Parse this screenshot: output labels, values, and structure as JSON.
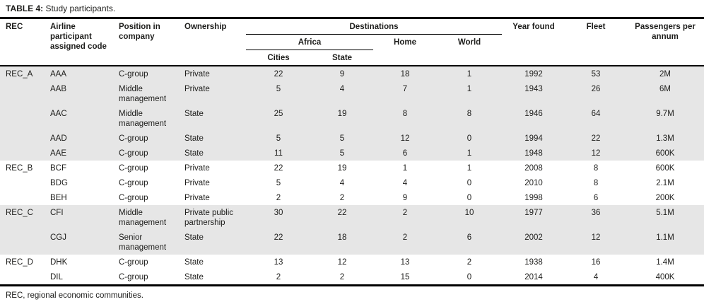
{
  "title": {
    "label": "TABLE 4:",
    "text": " Study participants."
  },
  "footnote": "REC, regional economic communities.",
  "colors": {
    "band_shaded": "#e6e6e6",
    "band_plain": "#ffffff",
    "rule": "#000000",
    "text": "#1d1d1b"
  },
  "table": {
    "headers": {
      "rec": "REC",
      "airline": "Airline participant assigned code",
      "position": "Position in company",
      "ownership": "Ownership",
      "destinations": "Destinations",
      "africa": "Africa",
      "cities": "Cities",
      "state": "State",
      "home": "Home",
      "world": "World",
      "year_found": "Year found",
      "fleet": "Fleet",
      "passengers": "Passengers per annum"
    },
    "groups": [
      {
        "rec": "REC_A",
        "shaded": true,
        "rows": [
          {
            "code": "AAA",
            "position": "C-group",
            "ownership": "Private",
            "cities": 22,
            "state": 9,
            "home": 18,
            "world": 1,
            "year": 1992,
            "fleet": 53,
            "passengers": "2M"
          },
          {
            "code": "AAB",
            "position": "Middle management",
            "ownership": "Private",
            "cities": 5,
            "state": 4,
            "home": 7,
            "world": 1,
            "year": 1943,
            "fleet": 26,
            "passengers": "6M"
          },
          {
            "code": "AAC",
            "position": "Middle management",
            "ownership": "State",
            "cities": 25,
            "state": 19,
            "home": 8,
            "world": 8,
            "year": 1946,
            "fleet": 64,
            "passengers": "9.7M"
          },
          {
            "code": "AAD",
            "position": "C-group",
            "ownership": "State",
            "cities": 5,
            "state": 5,
            "home": 12,
            "world": 0,
            "year": 1994,
            "fleet": 22,
            "passengers": "1.3M"
          },
          {
            "code": "AAE",
            "position": "C-group",
            "ownership": "State",
            "cities": 11,
            "state": 5,
            "home": 6,
            "world": 1,
            "year": 1948,
            "fleet": 12,
            "passengers": "600K"
          }
        ]
      },
      {
        "rec": "REC_B",
        "shaded": false,
        "rows": [
          {
            "code": "BCF",
            "position": "C-group",
            "ownership": "Private",
            "cities": 22,
            "state": 19,
            "home": 1,
            "world": 1,
            "year": 2008,
            "fleet": 8,
            "passengers": "600K"
          },
          {
            "code": "BDG",
            "position": "C-group",
            "ownership": "Private",
            "cities": 5,
            "state": 4,
            "home": 4,
            "world": 0,
            "year": 2010,
            "fleet": 8,
            "passengers": "2.1M"
          },
          {
            "code": "BEH",
            "position": "C-group",
            "ownership": "Private",
            "cities": 2,
            "state": 2,
            "home": 9,
            "world": 0,
            "year": 1998,
            "fleet": 6,
            "passengers": "200K"
          }
        ]
      },
      {
        "rec": "REC_C",
        "shaded": true,
        "rows": [
          {
            "code": "CFI",
            "position": "Middle management",
            "ownership": "Private public partnership",
            "cities": 30,
            "state": 22,
            "home": 2,
            "world": 10,
            "year": 1977,
            "fleet": 36,
            "passengers": "5.1M"
          },
          {
            "code": "CGJ",
            "position": "Senior management",
            "ownership": "State",
            "cities": 22,
            "state": 18,
            "home": 2,
            "world": 6,
            "year": 2002,
            "fleet": 12,
            "passengers": "1.1M"
          }
        ]
      },
      {
        "rec": "REC_D",
        "shaded": false,
        "rows": [
          {
            "code": "DHK",
            "position": "C-group",
            "ownership": "State",
            "cities": 13,
            "state": 12,
            "home": 13,
            "world": 2,
            "year": 1938,
            "fleet": 16,
            "passengers": "1.4M"
          },
          {
            "code": "DIL",
            "position": "C-group",
            "ownership": "State",
            "cities": 2,
            "state": 2,
            "home": 15,
            "world": 0,
            "year": 2014,
            "fleet": 4,
            "passengers": "400K"
          }
        ]
      }
    ]
  }
}
